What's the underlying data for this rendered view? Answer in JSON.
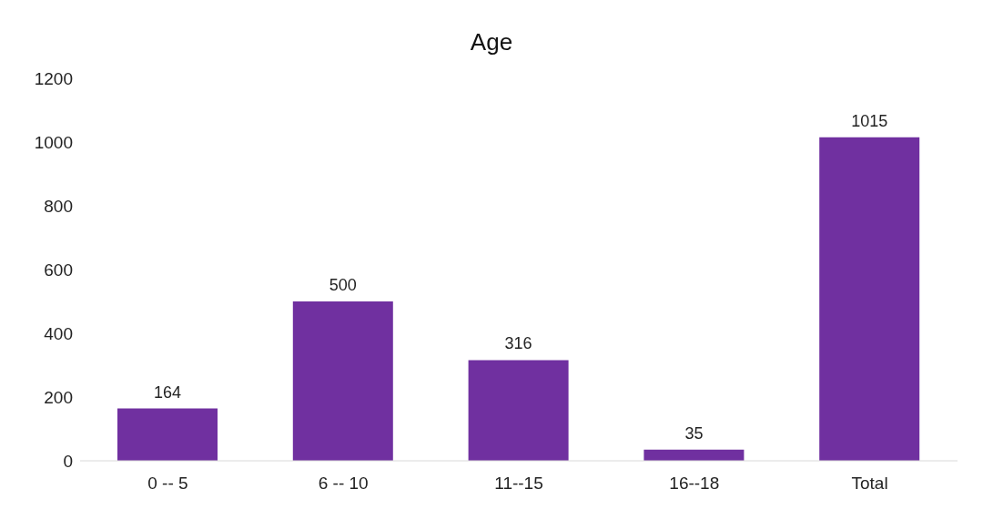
{
  "chart_data": {
    "type": "bar",
    "title": "Age",
    "categories": [
      "0 -- 5",
      "6 -- 10",
      "11--15",
      "16--18",
      "Total"
    ],
    "values": [
      164,
      500,
      316,
      35,
      1015
    ],
    "color": "#7030a0",
    "ylim": [
      0,
      1200
    ],
    "yticks": [
      0,
      200,
      400,
      600,
      800,
      1000,
      1200
    ],
    "grid": false,
    "data_labels": true
  }
}
